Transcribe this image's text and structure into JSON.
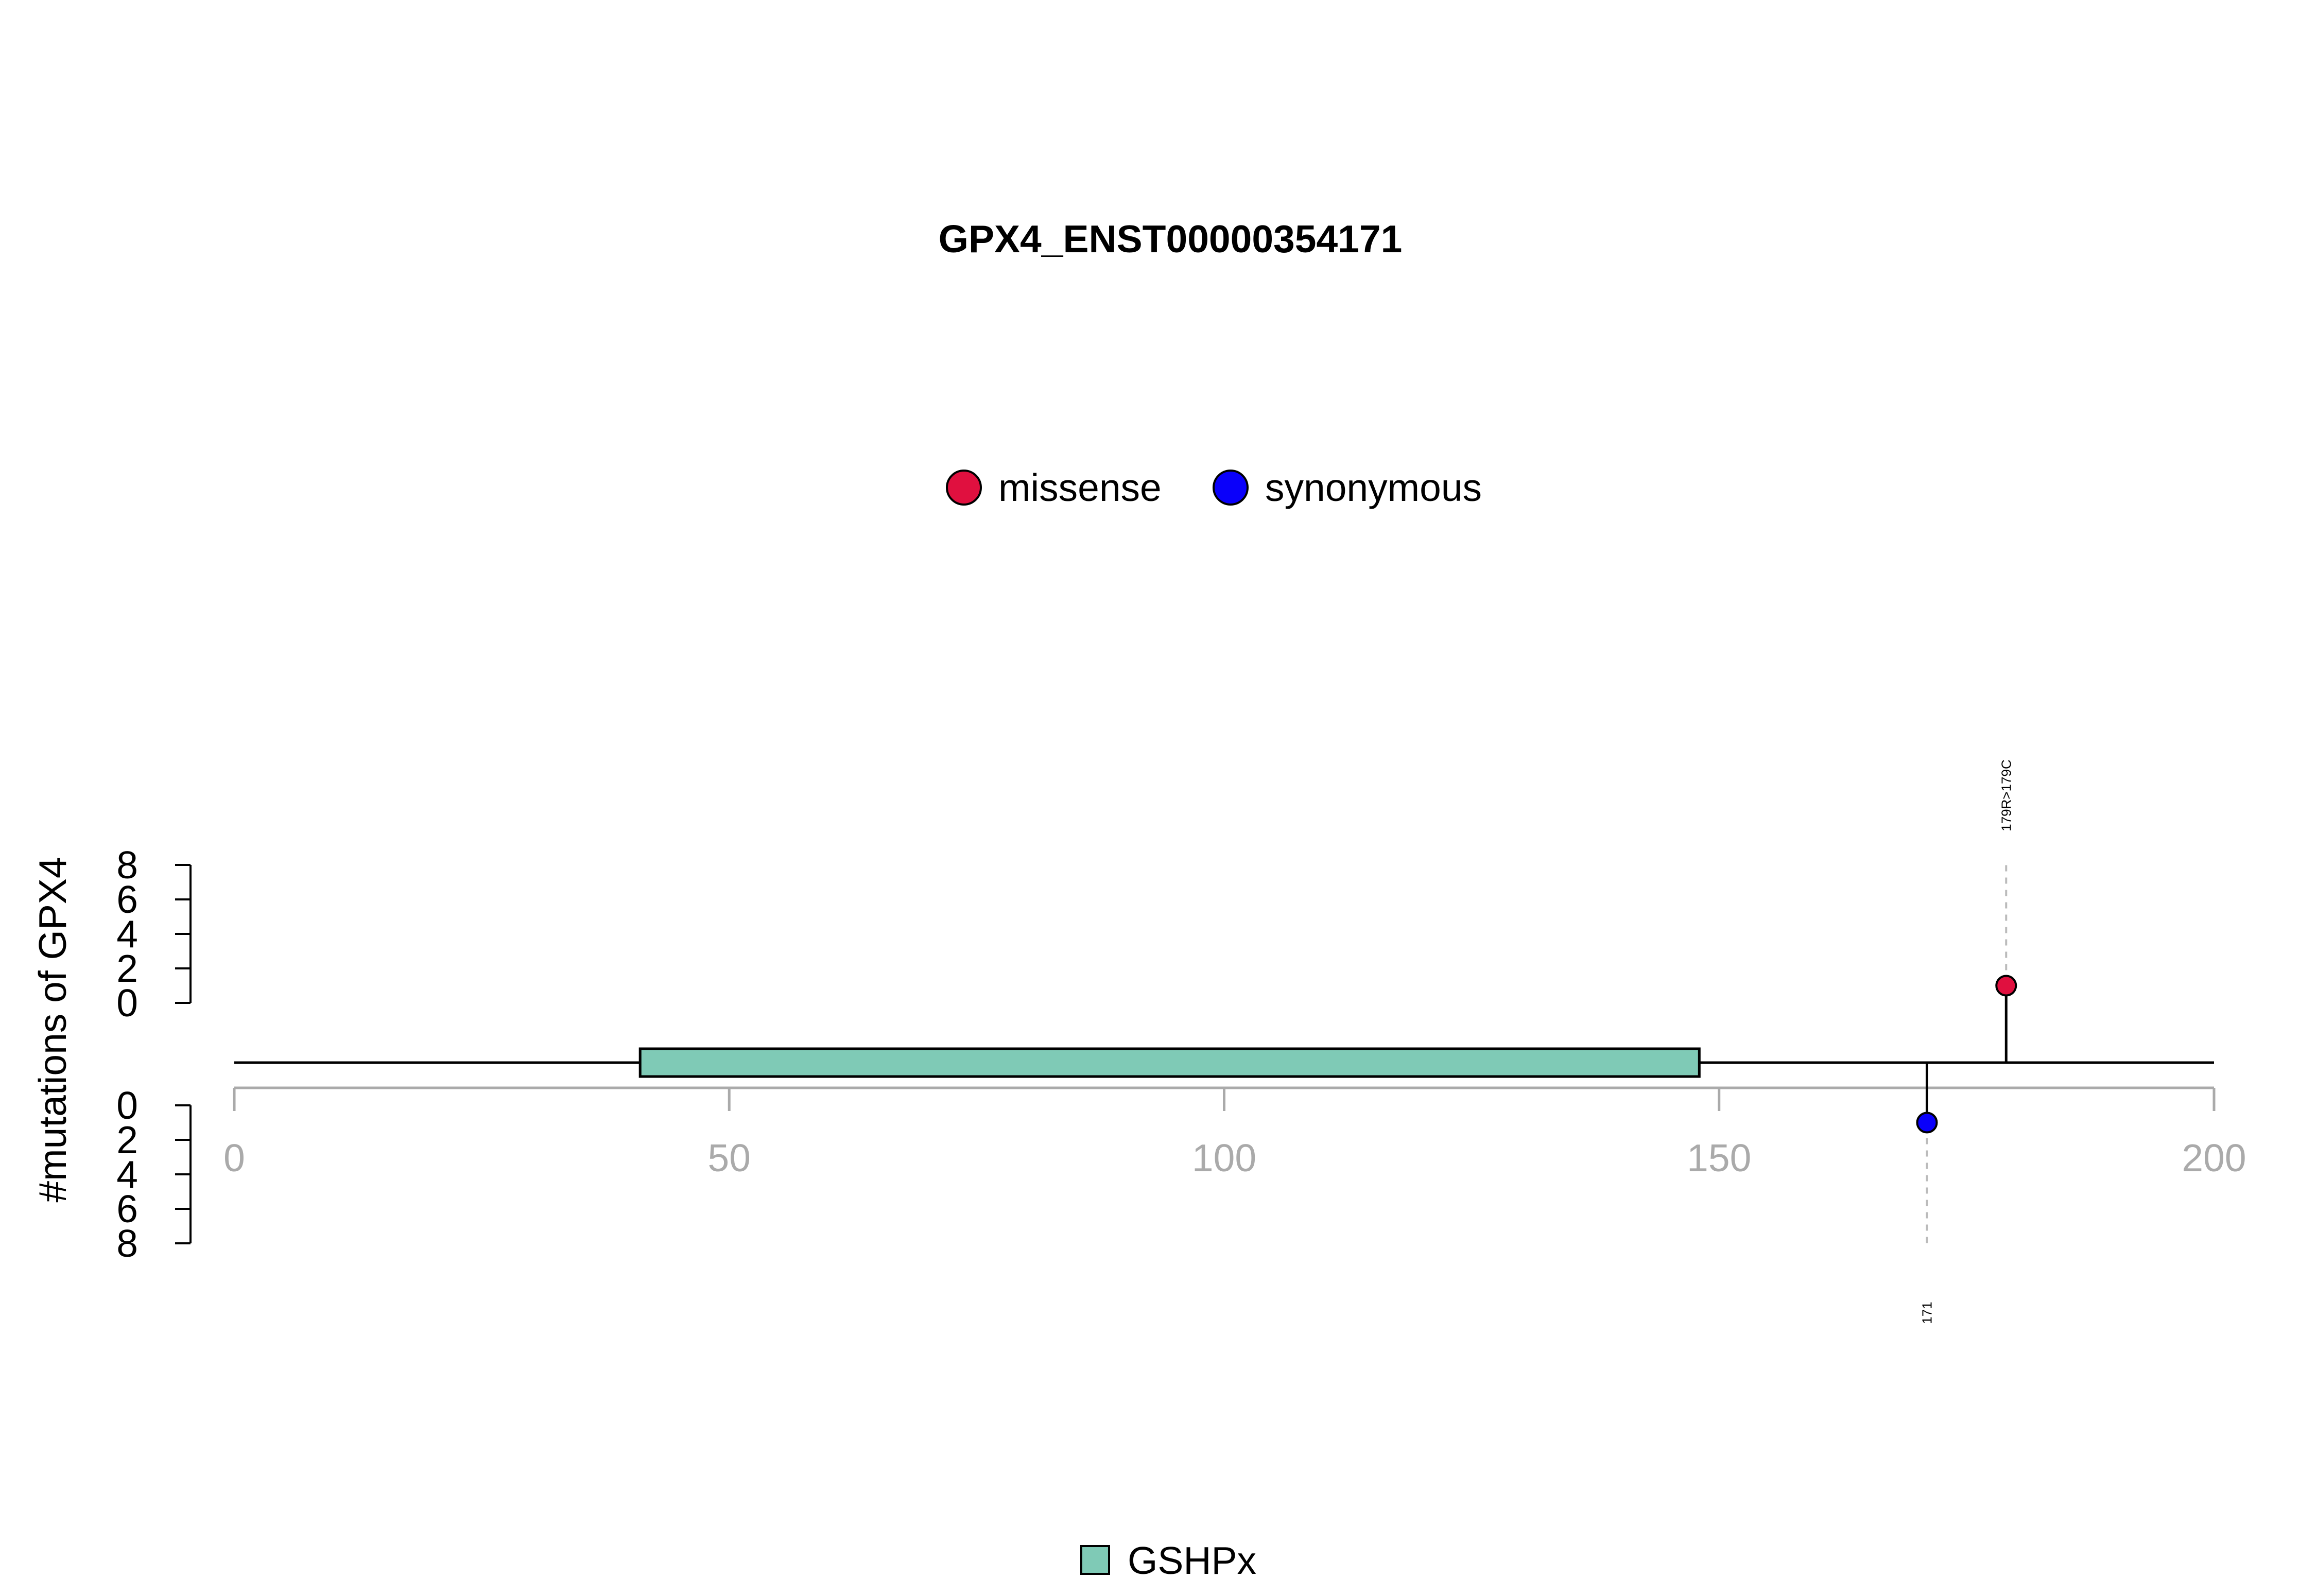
{
  "chart_data": {
    "type": "lollipop",
    "title": "GPX4_ENST00000354171",
    "ylabel": "#mutations of GPX4",
    "xlim": [
      0,
      200
    ],
    "x_ticks": [
      0,
      50,
      100,
      150,
      200
    ],
    "ylim_top": [
      0,
      8
    ],
    "ylim_bottom": [
      0,
      8
    ],
    "y_ticks": [
      0,
      2,
      4,
      6,
      8
    ],
    "legend": [
      {
        "name": "missense",
        "color": "#E0103F"
      },
      {
        "name": "synonymous",
        "color": "#0A00FA"
      }
    ],
    "mutations": [
      {
        "position": 179,
        "count": 1,
        "type": "missense",
        "side": "top",
        "label": "179R>179C",
        "color": "#E0103F"
      },
      {
        "position": 171,
        "count": 1,
        "type": "synonymous",
        "side": "bottom",
        "label": "171",
        "color": "#0A00FA"
      }
    ],
    "domains": [
      {
        "name": "GSHPx",
        "start": 41,
        "end": 148,
        "color": "#7FCAB6"
      }
    ],
    "colors": {
      "axis_gray": "#AAAAAA",
      "stroke": "#000000"
    }
  }
}
